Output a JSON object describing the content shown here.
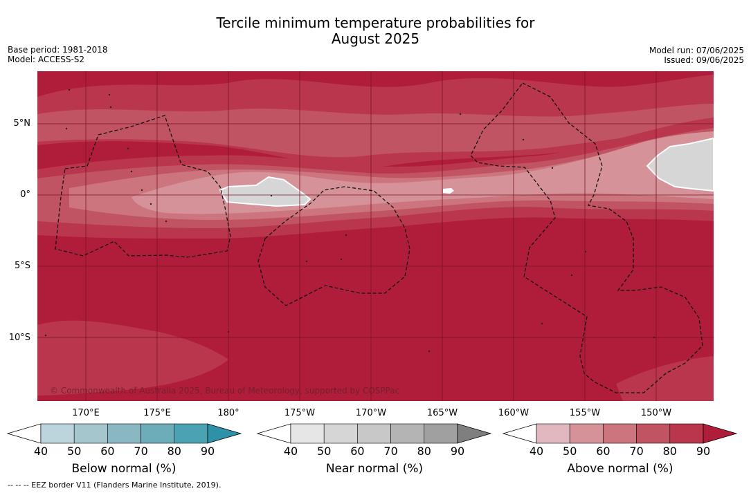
{
  "title_line1": "Tercile minimum temperature probabilities for",
  "title_line2": "August 2025",
  "base_period": "Base period: 1981-2018",
  "model": "Model: ACCESS-S2",
  "model_run": "Model run: 07/06/2025",
  "issued": "Issued: 09/06/2025",
  "lat_labels": [
    "5°N",
    "0°",
    "5°S",
    "10°S"
  ],
  "lon_labels": [
    "170°E",
    "175°E",
    "180°",
    "175°W",
    "170°W",
    "165°W",
    "160°W",
    "155°W",
    "150°W"
  ],
  "copyright": "© Commonwealth of Australia 2025, Bureau of Meteorology, supported by COSPPac",
  "footnote": "-- -- -- EEZ border V11 (Flanders Marine Institute, 2019).",
  "colorbars": [
    {
      "title": "Below normal (%)",
      "ticks": [
        "40",
        "50",
        "60",
        "70",
        "80",
        "90"
      ],
      "colors": [
        "#ffffff",
        "#bcd4dc",
        "#a6c6cd",
        "#8ab8c2",
        "#6dacb9",
        "#4ba2b2",
        "#2e91a8"
      ]
    },
    {
      "title": "Near normal (%)",
      "ticks": [
        "40",
        "50",
        "60",
        "70",
        "80",
        "90"
      ],
      "colors": [
        "#ffffff",
        "#e6e6e6",
        "#d6d6d6",
        "#c8c8c8",
        "#b4b4b4",
        "#a0a0a0",
        "#7f7f7f"
      ]
    },
    {
      "title": "Above normal (%)",
      "ticks": [
        "40",
        "50",
        "60",
        "70",
        "80",
        "90"
      ],
      "colors": [
        "#ffffff",
        "#e1b8bf",
        "#d69299",
        "#cc757f",
        "#c15463",
        "#b9364c",
        "#b01d3a"
      ]
    }
  ],
  "map_colors": {
    "above_90": "#b01d3a",
    "above_80": "#b9364c",
    "above_70": "#c15463",
    "above_60": "#cc757f",
    "above_50": "#d69299",
    "near_normal": "#d6d6d6"
  }
}
